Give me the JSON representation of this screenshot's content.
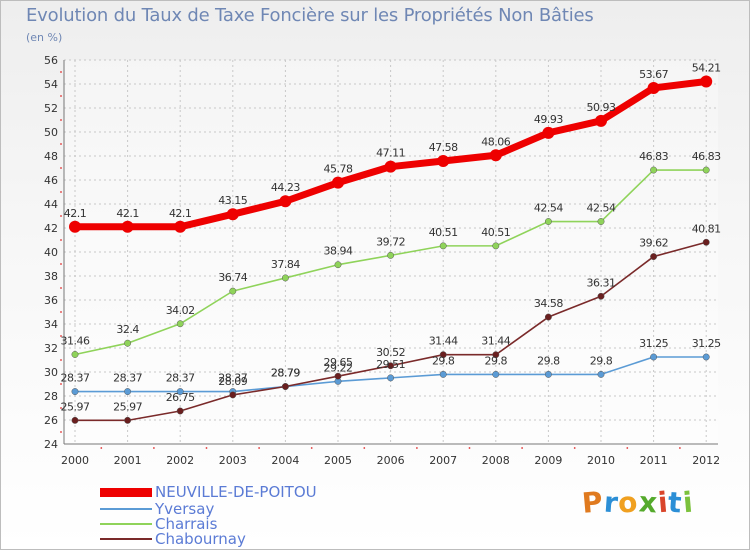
{
  "title": "Evolution du Taux de Taxe Foncière sur les Propriétés Non Bâties",
  "subtitle": "(en %)",
  "logo": {
    "text": "Proxiti",
    "letter_colors": [
      "#e07a1f",
      "#2c8fd6",
      "#f0a020",
      "#55aa2c",
      "#d9452b",
      "#2c8fd6",
      "#7cc23d"
    ]
  },
  "chart_data": {
    "type": "line",
    "title": "Evolution du Taux de Taxe Foncière sur les Propriétés Non Bâties",
    "ylabel": "(en %)",
    "ylim": [
      24,
      56
    ],
    "yticks": [
      24,
      26,
      28,
      30,
      32,
      34,
      36,
      38,
      40,
      42,
      44,
      46,
      48,
      50,
      52,
      54,
      56
    ],
    "categories": [
      "2000",
      "2001",
      "2002",
      "2003",
      "2004",
      "2005",
      "2006",
      "2007",
      "2008",
      "2009",
      "2010",
      "2011",
      "2012"
    ],
    "grid": true,
    "legend_position": "bottom-left",
    "series": [
      {
        "name": "NEUVILLE-DE-POITOU",
        "color": "#ee0000",
        "values": [
          42.1,
          42.1,
          42.1,
          43.15,
          44.23,
          45.78,
          47.11,
          47.58,
          48.06,
          49.93,
          50.93,
          53.67,
          54.21
        ],
        "labels": [
          "42.1",
          "42.1",
          "42.1",
          "43.15",
          "44.23",
          "45.78",
          "47.11",
          "47.58",
          "48.06",
          "49.93",
          "50.93",
          "53.67",
          "54.21"
        ]
      },
      {
        "name": "Yversay",
        "color": "#5b9bd5",
        "values": [
          28.37,
          28.37,
          28.37,
          28.37,
          28.79,
          29.22,
          29.51,
          29.8,
          29.8,
          29.8,
          29.8,
          31.25,
          31.25
        ],
        "labels": [
          "28.37",
          "28.37",
          "28.37",
          "28.37",
          "28.79",
          "29.22",
          "29.51",
          "29.8",
          "29.8",
          "29.8",
          "29.8",
          "31.25",
          "31.25"
        ]
      },
      {
        "name": "Charrais",
        "color": "#8fd35a",
        "values": [
          31.46,
          32.4,
          34.02,
          36.74,
          37.84,
          38.94,
          39.72,
          40.51,
          40.51,
          42.54,
          42.54,
          46.83,
          46.83
        ],
        "labels": [
          "31.46",
          "32.4",
          "34.02",
          "36.74",
          "37.84",
          "38.94",
          "39.72",
          "40.51",
          "40.51",
          "42.54",
          "42.54",
          "46.83",
          "46.83"
        ]
      },
      {
        "name": "Chabournay",
        "color": "#7a2a2a",
        "values": [
          25.97,
          25.97,
          26.75,
          28.09,
          28.79,
          29.65,
          30.52,
          31.44,
          31.44,
          34.58,
          36.31,
          39.62,
          40.81
        ],
        "labels": [
          "25.97",
          "25.97",
          "26.75",
          "28.09",
          "28.79",
          "29.65",
          "30.52",
          "31.44",
          "31.44",
          "34.58",
          "36.31",
          "39.62",
          "40.81"
        ]
      }
    ]
  }
}
